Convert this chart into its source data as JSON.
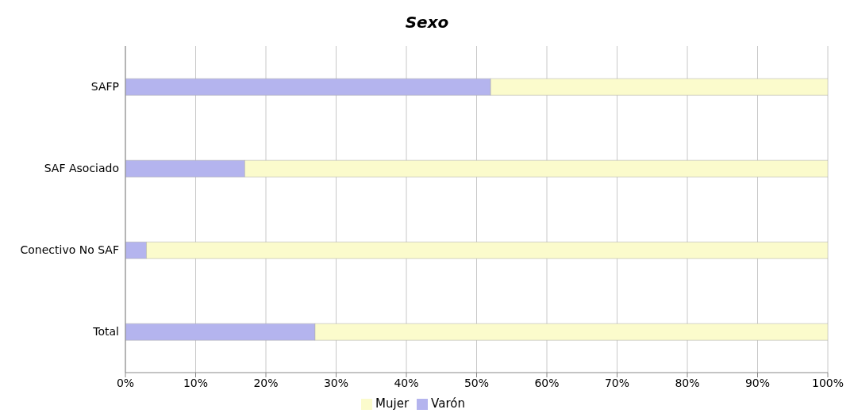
{
  "chart_data": {
    "type": "bar",
    "title": "Sexo",
    "orientation": "horizontal",
    "stacked": true,
    "categories": [
      "SAFP",
      "SAF Asociado",
      "Conectivo No SAF",
      "Total"
    ],
    "series": [
      {
        "name": "Varón",
        "color": "#b4b4ee",
        "values": [
          52,
          17,
          3,
          27
        ]
      },
      {
        "name": "Mujer",
        "color": "#fbfbcc",
        "values": [
          48,
          83,
          97,
          73
        ]
      }
    ],
    "xlim": [
      0,
      100
    ],
    "xticks": [
      {
        "value": 0,
        "label": "0%"
      },
      {
        "value": 10,
        "label": "10%"
      },
      {
        "value": 20,
        "label": "20%"
      },
      {
        "value": 30,
        "label": "30%"
      },
      {
        "value": 40,
        "label": "40%"
      },
      {
        "value": 50,
        "label": "50%"
      },
      {
        "value": 60,
        "label": "60%"
      },
      {
        "value": 70,
        "label": "70%"
      },
      {
        "value": 80,
        "label": "80%"
      },
      {
        "value": 90,
        "label": "90%"
      },
      {
        "value": 100,
        "label": "100%"
      }
    ],
    "grid": "x",
    "legend": "bottom"
  }
}
